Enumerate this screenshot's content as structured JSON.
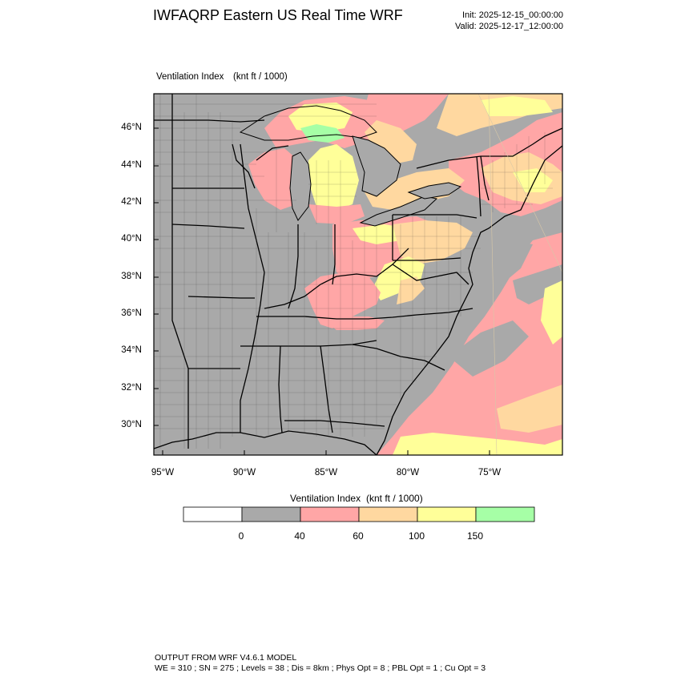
{
  "header": {
    "title": "IWFAQRP Eastern US Real Time WRF",
    "init": "Init: 2025-12-15_00:00:00",
    "valid": "Valid: 2025-12-17_12:00:00"
  },
  "map": {
    "variable": "Ventilation Index",
    "units": "(knt ft / 1000)",
    "lat_labels": [
      "46°N",
      "44°N",
      "42°N",
      "40°N",
      "38°N",
      "36°N",
      "34°N",
      "32°N",
      "30°N"
    ],
    "lon_labels": [
      "95°W",
      "90°W",
      "85°W",
      "80°W",
      "75°W"
    ]
  },
  "colorbar": {
    "title": "Ventilation Index",
    "units": "(knt ft / 1000)",
    "bins": [
      {
        "color": "#ffffff"
      },
      {
        "color": "#a9a9a9"
      },
      {
        "color": "#ffa6a6"
      },
      {
        "color": "#ffd8a0"
      },
      {
        "color": "#ffff99"
      },
      {
        "color": "#a6ffa6"
      }
    ],
    "labels": [
      "0",
      "40",
      "60",
      "100",
      "150"
    ]
  },
  "footer": {
    "line1": "OUTPUT FROM WRF V4.6.1 MODEL",
    "line2": "WE = 310 ; SN = 275 ; Levels = 38 ; Dis = 8km ; Phys Opt = 8 ; PBL Opt = 1 ; Cu Opt = 3"
  }
}
